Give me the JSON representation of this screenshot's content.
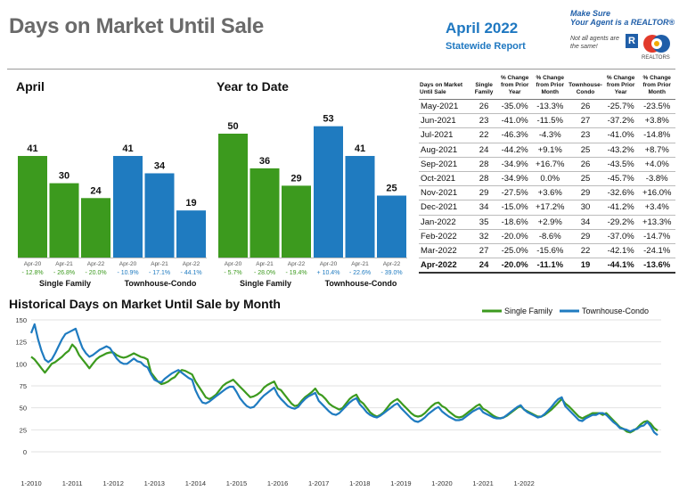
{
  "header": {
    "title": "Days on Market Until Sale",
    "report_title": "April 2022",
    "report_subtitle": "Statewide Report"
  },
  "logo": {
    "line1": "Make Sure",
    "line2": "Your Agent is a REALTOR®",
    "line3": "Not all agents are the same!",
    "r_mark": "R",
    "brand": "REALTORS"
  },
  "colors": {
    "single_family": "#3c9a1e",
    "townhouse": "#1f7bc0",
    "pct_green": "#3c9a1e",
    "pct_blue": "#1f7bc0"
  },
  "table": {
    "headers": [
      "Days on Market Until Sale",
      "Single Family",
      "% Change from Prior Year",
      "% Change from Prior Month",
      "Townhouse-Condo",
      "% Change from Prior Year",
      "% Change from Prior Month"
    ],
    "rows": [
      [
        "May-2021",
        "26",
        "-35.0%",
        "-13.3%",
        "26",
        "-25.7%",
        "-23.5%"
      ],
      [
        "Jun-2021",
        "23",
        "-41.0%",
        "-11.5%",
        "27",
        "-37.2%",
        "+3.8%"
      ],
      [
        "Jul-2021",
        "22",
        "-46.3%",
        "-4.3%",
        "23",
        "-41.0%",
        "-14.8%"
      ],
      [
        "Aug-2021",
        "24",
        "-44.2%",
        "+9.1%",
        "25",
        "-43.2%",
        "+8.7%"
      ],
      [
        "Sep-2021",
        "28",
        "-34.9%",
        "+16.7%",
        "26",
        "-43.5%",
        "+4.0%"
      ],
      [
        "Oct-2021",
        "28",
        "-34.9%",
        "0.0%",
        "25",
        "-45.7%",
        "-3.8%"
      ],
      [
        "Nov-2021",
        "29",
        "-27.5%",
        "+3.6%",
        "29",
        "-32.6%",
        "+16.0%"
      ],
      [
        "Dec-2021",
        "34",
        "-15.0%",
        "+17.2%",
        "30",
        "-41.2%",
        "+3.4%"
      ],
      [
        "Jan-2022",
        "35",
        "-18.6%",
        "+2.9%",
        "34",
        "-29.2%",
        "+13.3%"
      ],
      [
        "Feb-2022",
        "32",
        "-20.0%",
        "-8.6%",
        "29",
        "-37.0%",
        "-14.7%"
      ],
      [
        "Mar-2022",
        "27",
        "-25.0%",
        "-15.6%",
        "22",
        "-42.1%",
        "-24.1%"
      ],
      [
        "Apr-2022",
        "24",
        "-20.0%",
        "-11.1%",
        "19",
        "-44.1%",
        "-13.6%"
      ]
    ]
  },
  "historical_title": "Historical Days on Market Until Sale by Month",
  "chart_data": [
    {
      "type": "bar",
      "title": "April",
      "groups": [
        {
          "name": "Single Family",
          "categories": [
            "Apr-20",
            "Apr-21",
            "Apr-22"
          ],
          "values": [
            41,
            30,
            24
          ],
          "pct_changes": [
            "- 12.8%",
            "- 26.8%",
            "- 20.0%"
          ]
        },
        {
          "name": "Townhouse-Condo",
          "categories": [
            "Apr-20",
            "Apr-21",
            "Apr-22"
          ],
          "values": [
            41,
            34,
            19
          ],
          "pct_changes": [
            "- 10.9%",
            "- 17.1%",
            "- 44.1%"
          ]
        }
      ]
    },
    {
      "type": "bar",
      "title": "Year to Date",
      "groups": [
        {
          "name": "Single Family",
          "categories": [
            "Apr-20",
            "Apr-21",
            "Apr-22"
          ],
          "values": [
            50,
            36,
            29
          ],
          "pct_changes": [
            "- 5.7%",
            "- 28.0%",
            "- 19.4%"
          ]
        },
        {
          "name": "Townhouse-Condo",
          "categories": [
            "Apr-20",
            "Apr-21",
            "Apr-22"
          ],
          "values": [
            53,
            41,
            25
          ],
          "pct_changes": [
            "+ 10.4%",
            "- 22.6%",
            "- 39.0%"
          ]
        }
      ]
    },
    {
      "type": "line",
      "title": "Historical Days on Market Until Sale by Month",
      "x_start": "2010-01",
      "x_ticks": [
        "1-2010",
        "1-2011",
        "1-2012",
        "1-2013",
        "1-2014",
        "1-2015",
        "1-2016",
        "1-2017",
        "1-2018",
        "1-2019",
        "1-2020",
        "1-2021",
        "1-2022"
      ],
      "y_ticks": [
        0,
        25,
        50,
        75,
        100,
        125,
        150
      ],
      "ylim": [
        0,
        150
      ],
      "legend_position": "top-right",
      "series": [
        {
          "name": "Single Family",
          "color": "#3c9a1e",
          "values": [
            108,
            105,
            100,
            95,
            90,
            95,
            100,
            102,
            105,
            108,
            112,
            115,
            122,
            118,
            110,
            105,
            100,
            95,
            100,
            105,
            108,
            110,
            112,
            113,
            113,
            110,
            108,
            107,
            108,
            110,
            112,
            110,
            108,
            107,
            105,
            90,
            85,
            80,
            77,
            78,
            80,
            83,
            85,
            90,
            93,
            92,
            90,
            88,
            80,
            74,
            68,
            62,
            60,
            62,
            65,
            70,
            75,
            78,
            80,
            82,
            78,
            74,
            70,
            66,
            62,
            63,
            65,
            68,
            73,
            76,
            78,
            80,
            72,
            70,
            65,
            60,
            55,
            52,
            53,
            58,
            62,
            65,
            68,
            72,
            66,
            64,
            60,
            55,
            52,
            50,
            48,
            50,
            55,
            60,
            63,
            65,
            58,
            55,
            50,
            45,
            42,
            40,
            42,
            45,
            50,
            55,
            58,
            60,
            56,
            52,
            48,
            44,
            41,
            40,
            41,
            44,
            48,
            52,
            55,
            56,
            52,
            50,
            46,
            43,
            40,
            39,
            40,
            43,
            46,
            49,
            52,
            54,
            49,
            47,
            44,
            41,
            39,
            38,
            39,
            41,
            44,
            47,
            50,
            52,
            48,
            46,
            44,
            42,
            40,
            40,
            42,
            45,
            48,
            52,
            56,
            60,
            55,
            52,
            48,
            44,
            40,
            38,
            40,
            42,
            44,
            44,
            44,
            42,
            44,
            40,
            36,
            32,
            28,
            26,
            23,
            22,
            24,
            27,
            31,
            34,
            35,
            32,
            27,
            24
          ]
        },
        {
          "name": "Townhouse-Condo",
          "color": "#1f7bc0",
          "values": [
            135,
            145,
            128,
            115,
            105,
            102,
            105,
            112,
            120,
            128,
            134,
            136,
            138,
            140,
            128,
            118,
            112,
            108,
            110,
            113,
            116,
            118,
            120,
            118,
            112,
            106,
            102,
            100,
            100,
            103,
            106,
            103,
            102,
            98,
            96,
            88,
            82,
            80,
            79,
            83,
            86,
            89,
            91,
            93,
            90,
            87,
            84,
            82,
            70,
            62,
            56,
            55,
            57,
            60,
            63,
            66,
            69,
            72,
            74,
            74,
            68,
            61,
            56,
            52,
            50,
            51,
            55,
            60,
            64,
            67,
            70,
            73,
            65,
            60,
            56,
            52,
            50,
            49,
            51,
            56,
            60,
            63,
            65,
            67,
            58,
            54,
            50,
            46,
            43,
            42,
            44,
            48,
            52,
            56,
            59,
            61,
            54,
            50,
            45,
            42,
            40,
            39,
            41,
            44,
            47,
            50,
            53,
            55,
            50,
            46,
            42,
            38,
            35,
            34,
            36,
            39,
            43,
            46,
            49,
            51,
            46,
            43,
            40,
            38,
            36,
            36,
            37,
            40,
            43,
            46,
            48,
            50,
            45,
            43,
            41,
            39,
            38,
            38,
            39,
            42,
            45,
            48,
            51,
            53,
            48,
            45,
            43,
            41,
            39,
            40,
            43,
            47,
            51,
            56,
            60,
            62,
            52,
            48,
            44,
            40,
            36,
            35,
            38,
            40,
            42,
            42,
            44,
            44,
            42,
            38,
            34,
            31,
            27,
            26,
            25,
            23,
            25,
            26,
            29,
            30,
            34,
            29,
            22,
            19
          ]
        }
      ]
    }
  ]
}
